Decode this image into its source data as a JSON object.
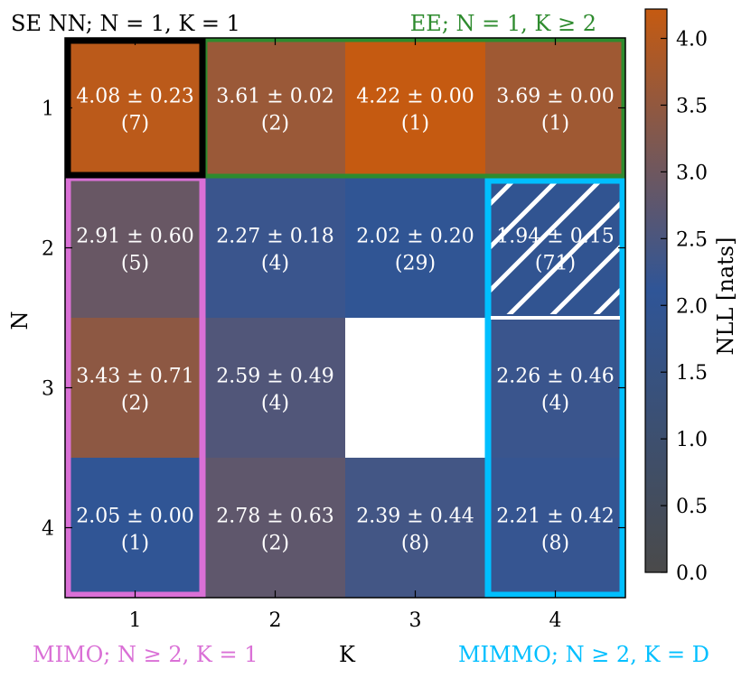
{
  "chart_data": {
    "type": "heatmap",
    "xlabel": "K",
    "ylabel": "N",
    "x_categories": [
      "1",
      "2",
      "3",
      "4"
    ],
    "y_categories": [
      "1",
      "2",
      "3",
      "4"
    ],
    "cells": [
      [
        {
          "mean": "4.08",
          "std": "0.23",
          "count": "(7)",
          "value": 4.08
        },
        {
          "mean": "3.61",
          "std": "0.02",
          "count": "(2)",
          "value": 3.61
        },
        {
          "mean": "4.22",
          "std": "0.00",
          "count": "(1)",
          "value": 4.22
        },
        {
          "mean": "3.69",
          "std": "0.00",
          "count": "(1)",
          "value": 3.69
        }
      ],
      [
        {
          "mean": "2.91",
          "std": "0.60",
          "count": "(5)",
          "value": 2.91
        },
        {
          "mean": "2.27",
          "std": "0.18",
          "count": "(4)",
          "value": 2.27
        },
        {
          "mean": "2.02",
          "std": "0.20",
          "count": "(29)",
          "value": 2.02
        },
        {
          "mean": "1.94",
          "std": "0.15",
          "count": "(71)",
          "value": 1.94,
          "hatched": true
        }
      ],
      [
        {
          "mean": "3.43",
          "std": "0.71",
          "count": "(2)",
          "value": 3.43
        },
        {
          "mean": "2.59",
          "std": "0.49",
          "count": "(4)",
          "value": 2.59
        },
        null,
        {
          "mean": "2.26",
          "std": "0.46",
          "count": "(4)",
          "value": 2.26
        }
      ],
      [
        {
          "mean": "2.05",
          "std": "0.00",
          "count": "(1)",
          "value": 2.05
        },
        {
          "mean": "2.78",
          "std": "0.63",
          "count": "(2)",
          "value": 2.78
        },
        {
          "mean": "2.39",
          "std": "0.44",
          "count": "(8)",
          "value": 2.39
        },
        {
          "mean": "2.21",
          "std": "0.42",
          "count": "(8)",
          "value": 2.21
        }
      ]
    ],
    "colorbar": {
      "label": "NLL [nats]",
      "range": [
        0.0,
        4.22
      ],
      "ticks": [
        "0.0",
        "0.5",
        "1.0",
        "1.5",
        "2.0",
        "2.5",
        "3.0",
        "3.5",
        "4.0"
      ],
      "colors": [
        "#4a4a4a",
        "#2f5597",
        "#c55a11"
      ]
    },
    "regions": [
      {
        "name": "se-nn",
        "label": "SE NN; N = 1, K = 1",
        "color": "#000000"
      },
      {
        "name": "ee",
        "label": "EE; N = 1, K ≥ 2",
        "color": "#2e8b2e"
      },
      {
        "name": "mimo",
        "label": "MIMO; N ≥ 2, K = 1",
        "color": "#da70d6"
      },
      {
        "name": "mimmo",
        "label": "MIMMO; N ≥ 2, K = D",
        "color": "#00bfff"
      }
    ]
  }
}
